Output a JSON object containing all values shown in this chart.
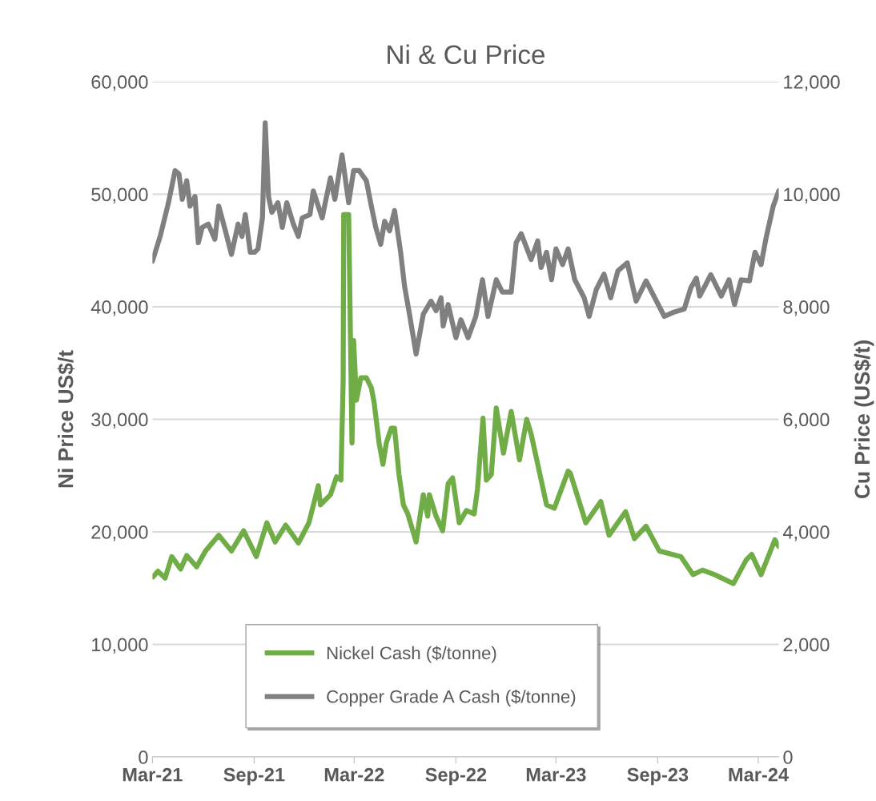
{
  "chart_data": {
    "type": "line",
    "title": "Ni & Cu Price",
    "ylabel": "Ni Price US$/t",
    "y2label": "Cu Price (US$/t)",
    "xlim": [
      "2021-03-01",
      "2024-04-07"
    ],
    "xticks": [
      {
        "value": "2021-03-01",
        "label": "Mar-21"
      },
      {
        "value": "2021-09-01",
        "label": "Sep-21"
      },
      {
        "value": "2022-03-01",
        "label": "Mar-22"
      },
      {
        "value": "2022-09-01",
        "label": "Sep-22"
      },
      {
        "value": "2023-03-01",
        "label": "Mar-23"
      },
      {
        "value": "2023-09-01",
        "label": "Sep-23"
      },
      {
        "value": "2024-03-01",
        "label": "Mar-24"
      }
    ],
    "ylim": [
      0,
      60000
    ],
    "yticks": [
      0,
      {
        "value": 10000,
        "label": "10,000"
      },
      {
        "value": 20000,
        "label": "20,000"
      },
      {
        "value": 30000,
        "label": "30,000"
      },
      {
        "value": 40000,
        "label": "40,000"
      },
      {
        "value": 50000,
        "label": "50,000"
      },
      {
        "value": 60000,
        "label": "60,000"
      }
    ],
    "y2lim": [
      0,
      12000
    ],
    "y2ticks": [
      0,
      {
        "value": 2000,
        "label": "2,000"
      },
      {
        "value": 4000,
        "label": "4,000"
      },
      {
        "value": 6000,
        "label": "6,000"
      },
      {
        "value": 8000,
        "label": "8,000"
      },
      {
        "value": 10000,
        "label": "10,000"
      },
      {
        "value": 12000,
        "label": "12,000"
      }
    ],
    "grid": "y",
    "legend": "bottom",
    "marker": "none",
    "line_style": "solid",
    "series": [
      {
        "name": "Nickel Cash ($/tonne)",
        "color": "#70ad47",
        "x": [
          "2021-03-02",
          "2021-03-11",
          "2021-03-24",
          "2021-04-05",
          "2021-04-21",
          "2021-05-02",
          "2021-05-20",
          "2021-06-05",
          "2021-06-29",
          "2021-07-22",
          "2021-08-13",
          "2021-09-05",
          "2021-09-24",
          "2021-10-09",
          "2021-10-28",
          "2021-11-20",
          "2021-12-09",
          "2021-12-26",
          "2021-12-30",
          "2022-01-17",
          "2022-01-28",
          "2022-02-05",
          "2022-02-09",
          "2022-02-10",
          "2022-02-19",
          "2022-02-25",
          "2022-02-28",
          "2022-03-05",
          "2022-03-13",
          "2022-03-23",
          "2022-04-01",
          "2022-04-06",
          "2022-04-15",
          "2022-04-22",
          "2022-04-28",
          "2022-05-07",
          "2022-05-13",
          "2022-05-21",
          "2022-05-29",
          "2022-06-06",
          "2022-06-21",
          "2022-07-04",
          "2022-07-12",
          "2022-07-15",
          "2022-07-27",
          "2022-08-08",
          "2022-08-18",
          "2022-08-26",
          "2022-09-07",
          "2022-09-20",
          "2022-10-04",
          "2022-10-10",
          "2022-10-20",
          "2022-10-26",
          "2022-11-04",
          "2022-11-13",
          "2022-11-26",
          "2022-12-10",
          "2022-12-25",
          "2023-01-07",
          "2023-01-15",
          "2023-01-27",
          "2023-02-12",
          "2023-02-26",
          "2023-03-23",
          "2023-03-27",
          "2023-04-24",
          "2023-05-21",
          "2023-06-05",
          "2023-07-05",
          "2023-07-21",
          "2023-08-11",
          "2023-09-04",
          "2023-10-13",
          "2023-11-04",
          "2023-11-21",
          "2023-12-13",
          "2024-01-16",
          "2024-02-08",
          "2024-02-18",
          "2024-03-06",
          "2024-03-31",
          "2024-04-07"
        ],
        "values": [
          16000,
          16500,
          15900,
          17800,
          16700,
          17900,
          16900,
          18300,
          19700,
          18300,
          20100,
          17800,
          20800,
          19100,
          20600,
          19000,
          20800,
          24100,
          22400,
          23300,
          24900,
          24600,
          33400,
          48200,
          48200,
          27900,
          37000,
          31700,
          33700,
          33700,
          32800,
          31500,
          27900,
          26000,
          27900,
          29200,
          29200,
          25100,
          22400,
          21600,
          19100,
          23300,
          21400,
          23300,
          21400,
          20100,
          24300,
          24800,
          20800,
          21900,
          21600,
          23800,
          30100,
          24600,
          25100,
          31000,
          27000,
          30700,
          26400,
          30000,
          28700,
          26000,
          22400,
          22100,
          25400,
          25200,
          20800,
          22700,
          19700,
          21800,
          19400,
          20500,
          18300,
          17800,
          16200,
          16600,
          16200,
          15400,
          17500,
          18000,
          16200,
          19300,
          18700
        ]
      },
      {
        "name": "Copper Grade A Cash ($/tonne)",
        "color": "#808080",
        "axis": "y2",
        "x": [
          "2021-03-01",
          "2021-03-08",
          "2021-03-15",
          "2021-03-30",
          "2021-04-11",
          "2021-04-18",
          "2021-04-24",
          "2021-05-02",
          "2021-05-08",
          "2021-05-17",
          "2021-05-23",
          "2021-05-30",
          "2021-06-10",
          "2021-06-22",
          "2021-06-29",
          "2021-07-11",
          "2021-07-22",
          "2021-08-03",
          "2021-08-10",
          "2021-08-16",
          "2021-08-25",
          "2021-09-02",
          "2021-09-08",
          "2021-09-16",
          "2021-09-21",
          "2021-09-27",
          "2021-10-03",
          "2021-10-14",
          "2021-10-22",
          "2021-10-30",
          "2021-11-11",
          "2021-11-20",
          "2021-11-27",
          "2021-12-11",
          "2021-12-17",
          "2022-01-02",
          "2022-01-17",
          "2022-01-25",
          "2022-02-07",
          "2022-02-19",
          "2022-02-28",
          "2022-03-10",
          "2022-03-23",
          "2022-04-01",
          "2022-04-09",
          "2022-04-18",
          "2022-04-25",
          "2022-05-04",
          "2022-05-13",
          "2022-05-24",
          "2022-05-31",
          "2022-06-09",
          "2022-06-21",
          "2022-07-04",
          "2022-07-18",
          "2022-07-27",
          "2022-08-05",
          "2022-08-09",
          "2022-08-18",
          "2022-09-01",
          "2022-09-10",
          "2022-09-23",
          "2022-10-07",
          "2022-10-19",
          "2022-10-29",
          "2022-11-13",
          "2022-11-24",
          "2022-12-10",
          "2022-12-19",
          "2022-12-28",
          "2023-01-15",
          "2023-01-27",
          "2023-02-02",
          "2023-02-12",
          "2023-02-21",
          "2023-03-01",
          "2023-03-13",
          "2023-03-23",
          "2023-04-04",
          "2023-04-21",
          "2023-04-30",
          "2023-05-13",
          "2023-05-27",
          "2023-06-08",
          "2023-06-21",
          "2023-07-08",
          "2023-07-24",
          "2023-08-11",
          "2023-08-24",
          "2023-09-13",
          "2023-09-29",
          "2023-10-19",
          "2023-10-31",
          "2023-11-10",
          "2023-11-16",
          "2023-12-06",
          "2023-12-25",
          "2024-01-08",
          "2024-01-18",
          "2024-01-30",
          "2024-02-14",
          "2024-02-24",
          "2024-03-06",
          "2024-03-15",
          "2024-03-28",
          "2024-04-07"
        ],
        "values": [
          8810,
          9030,
          9250,
          9850,
          10420,
          10360,
          9910,
          10240,
          9790,
          9960,
          9140,
          9410,
          9470,
          9200,
          9790,
          9350,
          8930,
          9470,
          9250,
          9640,
          8970,
          8970,
          9030,
          9580,
          11270,
          9960,
          9680,
          9850,
          9410,
          9850,
          9470,
          9250,
          9580,
          9640,
          10060,
          9580,
          10290,
          9910,
          10700,
          9850,
          10420,
          10420,
          10240,
          9790,
          9410,
          9110,
          9520,
          9350,
          9710,
          8970,
          8370,
          7870,
          7160,
          7870,
          8100,
          7930,
          8160,
          7660,
          8040,
          7450,
          7770,
          7450,
          7830,
          8480,
          7830,
          8480,
          8260,
          8260,
          9140,
          9300,
          8840,
          9170,
          8700,
          8970,
          8480,
          9030,
          8750,
          9030,
          8480,
          8160,
          7830,
          8310,
          8580,
          8160,
          8640,
          8780,
          8100,
          8460,
          8210,
          7830,
          7900,
          7960,
          8340,
          8510,
          8190,
          8570,
          8190,
          8480,
          8040,
          8480,
          8460,
          8970,
          8750,
          9220,
          9790,
          10060
        ]
      }
    ]
  }
}
